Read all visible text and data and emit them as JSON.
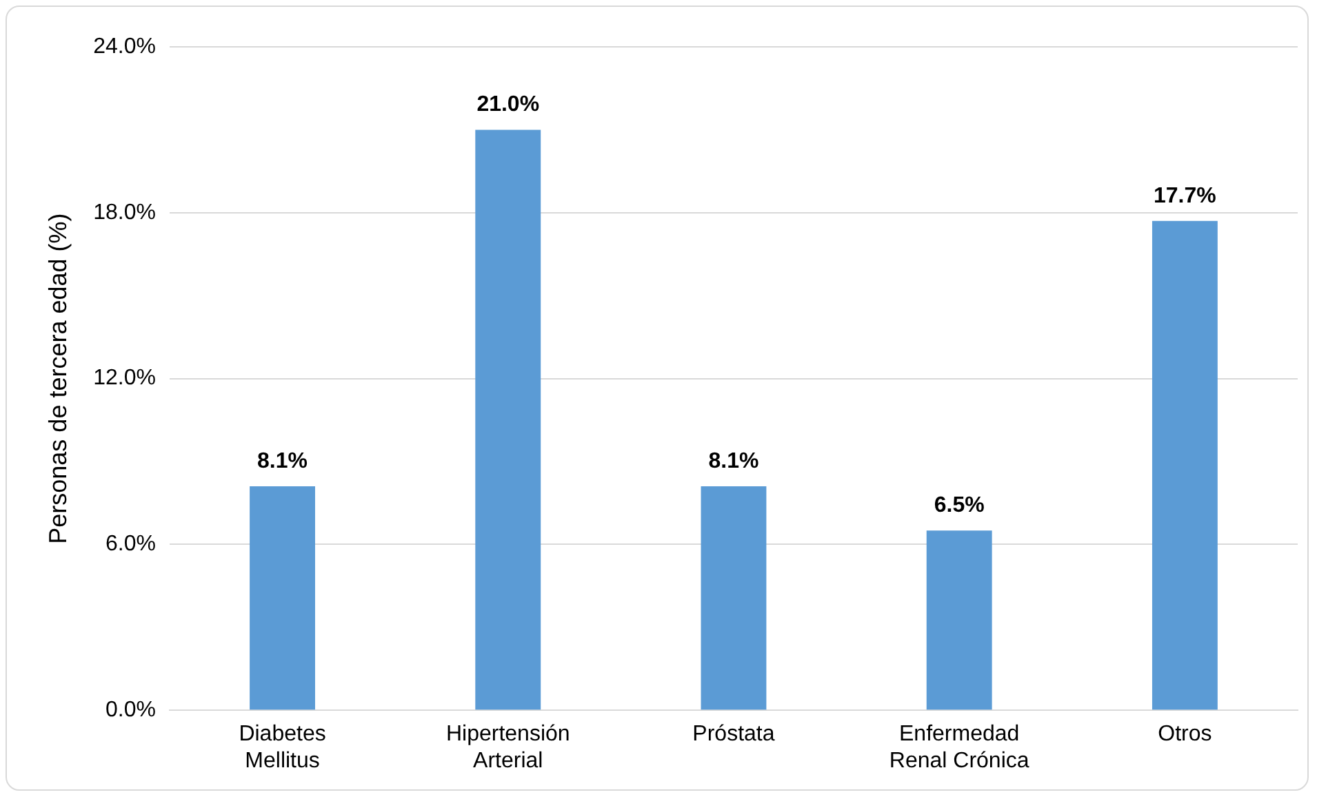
{
  "chart_data": {
    "type": "bar",
    "ylabel": "Personas de tercera edad (%)",
    "categories": [
      "Diabetes Mellitus",
      "Hipertensión Arterial",
      "Próstata",
      "Enfermedad Renal Crónica",
      "Otros"
    ],
    "values": [
      8.1,
      21.0,
      8.1,
      6.5,
      17.7
    ],
    "value_labels": [
      "8.1%",
      "21.0%",
      "8.1%",
      "6.5%",
      "17.7%"
    ],
    "color": "#5b9bd5",
    "ylim": [
      0,
      24
    ],
    "yticks": [
      {
        "value": 0,
        "label": "0.0%"
      },
      {
        "value": 6,
        "label": "6.0%"
      },
      {
        "value": 12,
        "label": "12.0%"
      },
      {
        "value": 18,
        "label": "18.0%"
      },
      {
        "value": 24,
        "label": "24.0%"
      }
    ],
    "grid": "y",
    "legend": false
  }
}
